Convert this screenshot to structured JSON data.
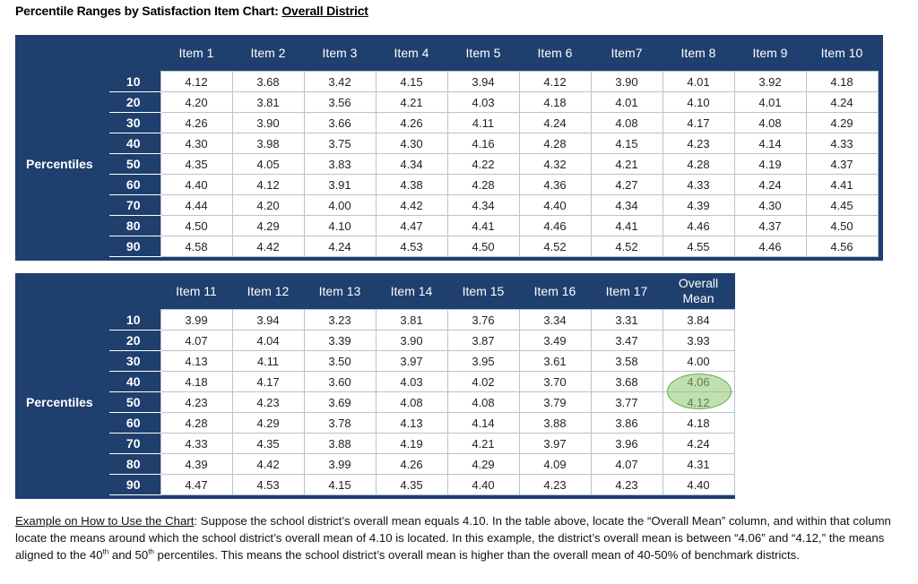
{
  "title": {
    "prefix": "Percentile Ranges by Satisfaction Item Chart: ",
    "link": "Overall District"
  },
  "row_label": "Percentiles",
  "percentiles": [
    "10",
    "20",
    "30",
    "40",
    "50",
    "60",
    "70",
    "80",
    "90"
  ],
  "table1": {
    "headers": [
      "Item 1",
      "Item 2",
      "Item 3",
      "Item 4",
      "Item 5",
      "Item 6",
      "Item7",
      "Item 8",
      "Item 9",
      "Item 10"
    ],
    "rows": [
      [
        "4.12",
        "3.68",
        "3.42",
        "4.15",
        "3.94",
        "4.12",
        "3.90",
        "4.01",
        "3.92",
        "4.18"
      ],
      [
        "4.20",
        "3.81",
        "3.56",
        "4.21",
        "4.03",
        "4.18",
        "4.01",
        "4.10",
        "4.01",
        "4.24"
      ],
      [
        "4.26",
        "3.90",
        "3.66",
        "4.26",
        "4.11",
        "4.24",
        "4.08",
        "4.17",
        "4.08",
        "4.29"
      ],
      [
        "4.30",
        "3.98",
        "3.75",
        "4.30",
        "4.16",
        "4.28",
        "4.15",
        "4.23",
        "4.14",
        "4.33"
      ],
      [
        "4.35",
        "4.05",
        "3.83",
        "4.34",
        "4.22",
        "4.32",
        "4.21",
        "4.28",
        "4.19",
        "4.37"
      ],
      [
        "4.40",
        "4.12",
        "3.91",
        "4.38",
        "4.28",
        "4.36",
        "4.27",
        "4.33",
        "4.24",
        "4.41"
      ],
      [
        "4.44",
        "4.20",
        "4.00",
        "4.42",
        "4.34",
        "4.40",
        "4.34",
        "4.39",
        "4.30",
        "4.45"
      ],
      [
        "4.50",
        "4.29",
        "4.10",
        "4.47",
        "4.41",
        "4.46",
        "4.41",
        "4.46",
        "4.37",
        "4.50"
      ],
      [
        "4.58",
        "4.42",
        "4.24",
        "4.53",
        "4.50",
        "4.52",
        "4.52",
        "4.55",
        "4.46",
        "4.56"
      ]
    ]
  },
  "table2": {
    "headers": [
      "Item 11",
      "Item 12",
      "Item 13",
      "Item 14",
      "Item 15",
      "Item 16",
      "Item 17",
      "Overall Mean"
    ],
    "header_last_line1": "Overall",
    "header_last_line2": "Mean",
    "rows": [
      [
        "3.99",
        "3.94",
        "3.23",
        "3.81",
        "3.76",
        "3.34",
        "3.31",
        "3.84"
      ],
      [
        "4.07",
        "4.04",
        "3.39",
        "3.90",
        "3.87",
        "3.49",
        "3.47",
        "3.93"
      ],
      [
        "4.13",
        "4.11",
        "3.50",
        "3.97",
        "3.95",
        "3.61",
        "3.58",
        "4.00"
      ],
      [
        "4.18",
        "4.17",
        "3.60",
        "4.03",
        "4.02",
        "3.70",
        "3.68",
        "4.06"
      ],
      [
        "4.23",
        "4.23",
        "3.69",
        "4.08",
        "4.08",
        "3.79",
        "3.77",
        "4.12"
      ],
      [
        "4.28",
        "4.29",
        "3.78",
        "4.13",
        "4.14",
        "3.88",
        "3.86",
        "4.18"
      ],
      [
        "4.33",
        "4.35",
        "3.88",
        "4.19",
        "4.21",
        "3.97",
        "3.96",
        "4.24"
      ],
      [
        "4.39",
        "4.42",
        "3.99",
        "4.26",
        "4.29",
        "4.09",
        "4.07",
        "4.31"
      ],
      [
        "4.47",
        "4.53",
        "4.15",
        "4.35",
        "4.40",
        "4.23",
        "4.23",
        "4.40"
      ]
    ],
    "highlight_color": "#8cc86e"
  },
  "example": {
    "label": "Example on How to Use the Chart",
    "text1": ": Suppose the school district’s overall mean equals 4.10. In the table above, locate the “Overall Mean” column, and within that column locate the means around which the school district’s overall mean of 4.10 is located. In this example, the district’s overall mean is between “4.06” and “4.12,” the means aligned to the 40",
    "sup1": "th",
    "text2": " and 50",
    "sup2": "th",
    "text3": " percentiles. This means the school district’s overall mean is higher than the overall mean of 40-50% of benchmark districts."
  },
  "colors": {
    "header_bg": "#1f3f6e",
    "cell_border": "#b8c2d0"
  }
}
